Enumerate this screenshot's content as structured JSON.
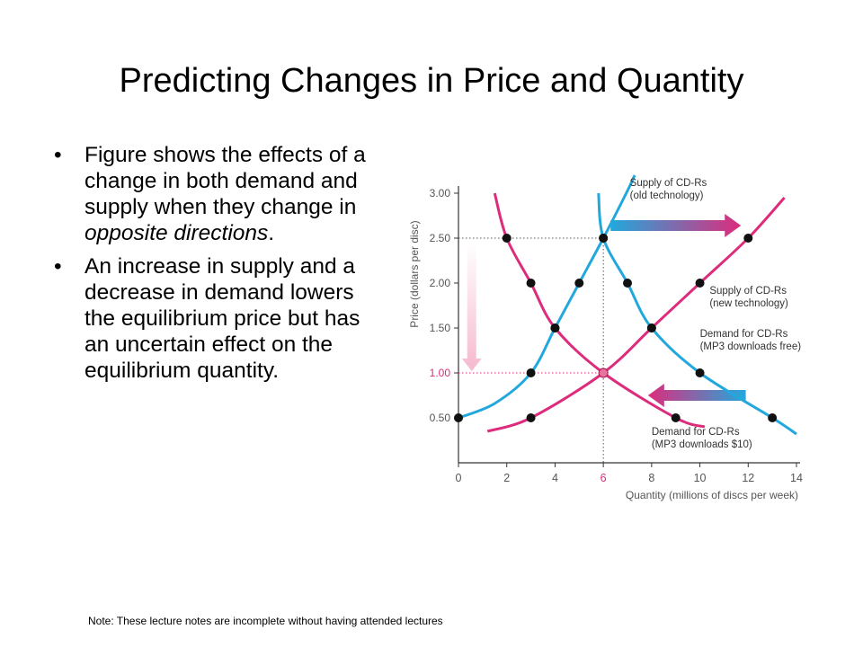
{
  "slide": {
    "title": "Predicting Changes in Price and Quantity",
    "bullets": [
      {
        "parts": [
          {
            "text": "Figure shows the effects of a change in both demand and supply when they change in ",
            "italic": false
          },
          {
            "text": "opposite directions",
            "italic": true
          },
          {
            "text": ".",
            "italic": false
          }
        ]
      },
      {
        "parts": [
          {
            "text": "An increase in supply and a decrease in demand lowers the equilibrium price but has an uncertain effect on the equilibrium quantity.",
            "italic": false
          }
        ]
      }
    ],
    "bullet_glyph": "•",
    "footnote": "Note: These lecture notes are incomplete without having attended lectures"
  },
  "chart_data": {
    "type": "line",
    "xlabel": "Quantity (millions of discs per week)",
    "ylabel": "Price (dollars per disc)",
    "xlim": [
      0,
      14
    ],
    "ylim": [
      0,
      3.0
    ],
    "x_ticks": [
      0,
      2,
      4,
      6,
      8,
      10,
      12,
      14
    ],
    "x_tick_labels": [
      "0",
      "2",
      "4",
      "6",
      "8",
      "10",
      "12",
      "14"
    ],
    "y_ticks": [
      0.5,
      1.0,
      1.5,
      2.0,
      2.5,
      3.0
    ],
    "y_tick_labels": [
      "0.50",
      "1.00",
      "1.50",
      "2.00",
      "2.50",
      "3.00"
    ],
    "highlight_x_tick": "6",
    "highlight_y_tick": "1.00",
    "grid": false,
    "colors": {
      "supply": "#22a8dc",
      "demand": "#dd2c7c",
      "axis": "#333333",
      "text": "#555555"
    },
    "series": [
      {
        "name": "Supply of CD-Rs (old technology)",
        "name_lines": [
          "Supply of CD-Rs",
          "(old technology)"
        ],
        "color": "#22a8dc",
        "points": [
          [
            0,
            0.5
          ],
          [
            3,
            1.0
          ],
          [
            4,
            1.5
          ],
          [
            5,
            2.0
          ],
          [
            6,
            2.5
          ]
        ],
        "curve": [
          [
            0,
            0.5
          ],
          [
            1.5,
            0.66
          ],
          [
            3,
            1.0
          ],
          [
            4,
            1.5
          ],
          [
            5,
            2.0
          ],
          [
            6,
            2.5
          ],
          [
            6.95,
            3.0
          ],
          [
            7.3,
            3.2
          ]
        ]
      },
      {
        "name": "Supply of CD-Rs (new technology)",
        "name_lines": [
          "Supply of CD-Rs",
          "(new technology)"
        ],
        "color": "#dd2c7c",
        "points": [
          [
            3,
            0.5
          ],
          [
            6,
            1.0
          ],
          [
            8,
            1.5
          ],
          [
            10,
            2.0
          ],
          [
            12,
            2.5
          ]
        ],
        "curve": [
          [
            1.2,
            0.35
          ],
          [
            3,
            0.5
          ],
          [
            6,
            1.0
          ],
          [
            8,
            1.5
          ],
          [
            10,
            2.0
          ],
          [
            12,
            2.5
          ],
          [
            13.5,
            2.95
          ]
        ]
      },
      {
        "name": "Demand for CD-Rs (MP3 downloads $10)",
        "name_lines": [
          "Demand for CD-Rs",
          "(MP3 downloads $10)"
        ],
        "color": "#dd2c7c",
        "points": [
          [
            2,
            2.5
          ],
          [
            3,
            2.0
          ],
          [
            4,
            1.5
          ],
          [
            6,
            1.0
          ],
          [
            9,
            0.5
          ]
        ],
        "curve": [
          [
            1.5,
            3.0
          ],
          [
            2,
            2.5
          ],
          [
            3,
            2.0
          ],
          [
            4,
            1.5
          ],
          [
            6,
            1.0
          ],
          [
            9,
            0.5
          ],
          [
            10.2,
            0.4
          ]
        ]
      },
      {
        "name": "Demand for CD-Rs (MP3 downloads free)",
        "name_lines": [
          "Demand for CD-Rs",
          "(MP3 downloads free)"
        ],
        "color": "#22a8dc",
        "points": [
          [
            6,
            2.5
          ],
          [
            7,
            2.0
          ],
          [
            8,
            1.5
          ],
          [
            10,
            1.0
          ],
          [
            13,
            0.5
          ]
        ],
        "curve": [
          [
            5.8,
            3.0
          ],
          [
            6,
            2.5
          ],
          [
            7,
            2.0
          ],
          [
            8,
            1.5
          ],
          [
            10,
            1.0
          ],
          [
            13,
            0.5
          ],
          [
            14,
            0.32
          ]
        ]
      }
    ],
    "extra_points": [
      [
        6,
        1.0
      ]
    ],
    "guides": [
      {
        "from": [
          0,
          2.5
        ],
        "to": [
          6,
          2.5
        ],
        "color": "#555555"
      },
      {
        "from": [
          6,
          2.5
        ],
        "to": [
          6,
          0
        ],
        "color": "#555555"
      },
      {
        "from": [
          0,
          1.0
        ],
        "to": [
          6,
          1.0
        ],
        "color": "#dd2c7c"
      }
    ]
  }
}
